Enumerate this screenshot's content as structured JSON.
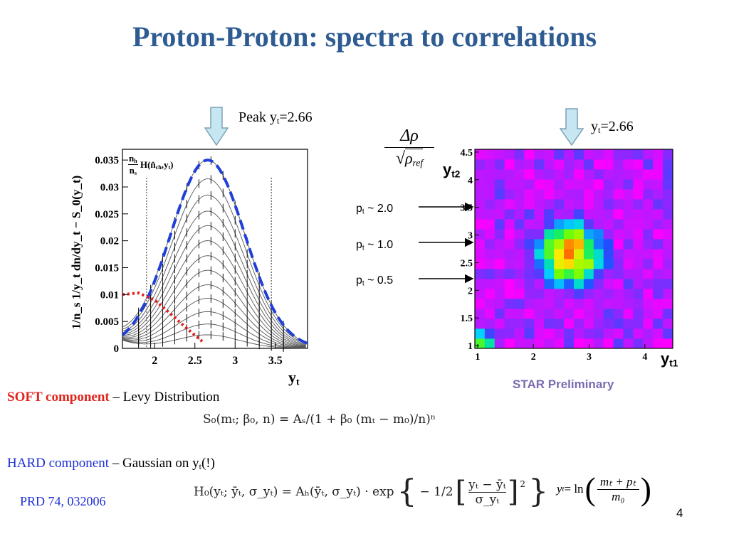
{
  "title": "Proton-Proton: spectra to correlations",
  "left_plot": {
    "peak_label_main": "Peak y",
    "peak_label_sub": "t",
    "peak_label_val": "=2.66",
    "legend_frac_top": "n",
    "legend_frac_top_sub": "h",
    "legend_frac_bot": "n",
    "legend_frac_bot_sub": "s",
    "legend_func": "H(n̂",
    "legend_func_sub": "ch",
    "legend_func_end": ",y",
    "legend_func_sub2": "t",
    "legend_func_close": ")",
    "ylabel": "1/n_s 1/y_t dn/dy_t − S_0(y_t)",
    "xlabel": "y",
    "xlabel_sub": "t",
    "colors": {
      "hard_fit": "#1f3fd6",
      "soft_fit": "#e01c1c",
      "curves": "#555555"
    }
  },
  "right_plot": {
    "yt_label_main": "y",
    "yt_label_sub": "t",
    "yt_label_val": "=2.66",
    "delta_rho": "Δρ",
    "rho_ref": "ρ",
    "rho_ref_sub": "ref",
    "y_axis_label": "y",
    "y_axis_label_sub": "t2",
    "x_axis_label": "y",
    "x_axis_label_sub": "t1",
    "star": "STAR Preliminary",
    "star_color": "#7b6bb0"
  },
  "pt_labels": [
    {
      "main": "p",
      "sub": "t",
      "val": " ~ 2.0"
    },
    {
      "main": "p",
      "sub": "t",
      "val": " ~ 1.0"
    },
    {
      "main": "p",
      "sub": "t",
      "val": " ~ 0.5"
    }
  ],
  "soft": {
    "name": "SOFT component",
    "desc": " – Levy Distribution",
    "color": "#e0241b",
    "equation": "S₀(mₜ; β₀, n) = Aₛ/(1 + β₀ (mₜ − m₀)/n)ⁿ"
  },
  "hard": {
    "name": "HARD component",
    "desc": " – Gaussian on y",
    "desc_sub": "t",
    "desc_end": "(!)",
    "color": "#1c2fd6",
    "equation_lhs": "H₀(yₜ; ȳₜ, σ_yₜ) = Aₕ(ȳₜ, σ_yₜ) · exp",
    "minus_half": "− 1/2",
    "bracket_num": "yₜ − ȳₜ",
    "bracket_den": "σ_yₜ",
    "power": "2"
  },
  "yt_def": {
    "lhs": "y",
    "lhs_sub": "t",
    "eq": " = ln",
    "num": "mₜ + pₜ",
    "den": "m₀"
  },
  "reference": "PRD 74, 032006",
  "reference_color": "#1c2fd6",
  "page_number": "4",
  "chart_data": [
    {
      "type": "line",
      "title": "",
      "xlabel": "y_t",
      "ylabel": "1/n_s 1/y_t dn/dy_t − S_0(y_t)",
      "xlim": [
        1.6,
        3.9
      ],
      "ylim": [
        0,
        0.037
      ],
      "x_ticks": [
        "2",
        "2.5",
        "3",
        "3.5"
      ],
      "y_ticks": [
        "0",
        "0.005",
        "0.01",
        "0.015",
        "0.02",
        "0.025",
        "0.03",
        "0.035"
      ],
      "x_tick_values": [
        2,
        2.5,
        3,
        3.5
      ],
      "y_tick_values": [
        0,
        0.005,
        0.01,
        0.015,
        0.02,
        0.025,
        0.03,
        0.035
      ],
      "vertical_lines": [
        1.9,
        3.45
      ],
      "series": [
        {
          "values_peak": [
            0.035,
            0.0315,
            0.0285,
            0.0255,
            0.0228,
            0.02,
            0.0172,
            0.0145,
            0.0118,
            0.0093,
            0.0068,
            0.0045,
            0.0025
          ],
          "center": 2.66
        },
        {
          "name": "hard fit",
          "center": 2.66,
          "peak": 0.035,
          "sigma": 0.46
        },
        {
          "name": "soft fit",
          "x": [
            1.6,
            1.8,
            2.0,
            2.2,
            2.4,
            2.6
          ],
          "values": [
            0.01,
            0.0103,
            0.009,
            0.0064,
            0.0037,
            0.0012
          ]
        }
      ]
    },
    {
      "type": "heatmap",
      "title": "",
      "xlabel": "y_t1",
      "ylabel": "y_t2",
      "xlim": [
        0.95,
        4.5
      ],
      "ylim": [
        0.95,
        4.55
      ],
      "x_ticks": [
        "1",
        "2",
        "3",
        "4"
      ],
      "y_ticks": [
        "1",
        "1.5",
        "2",
        "2.5",
        "3",
        "3.5",
        "4",
        "4.5"
      ],
      "x_tick_values": [
        1,
        2,
        3,
        4
      ],
      "y_tick_values": [
        1,
        1.5,
        2,
        2.5,
        3,
        3.5,
        4,
        4.5
      ],
      "bins": 20,
      "peak_center": [
        2.66,
        2.66
      ]
    }
  ]
}
